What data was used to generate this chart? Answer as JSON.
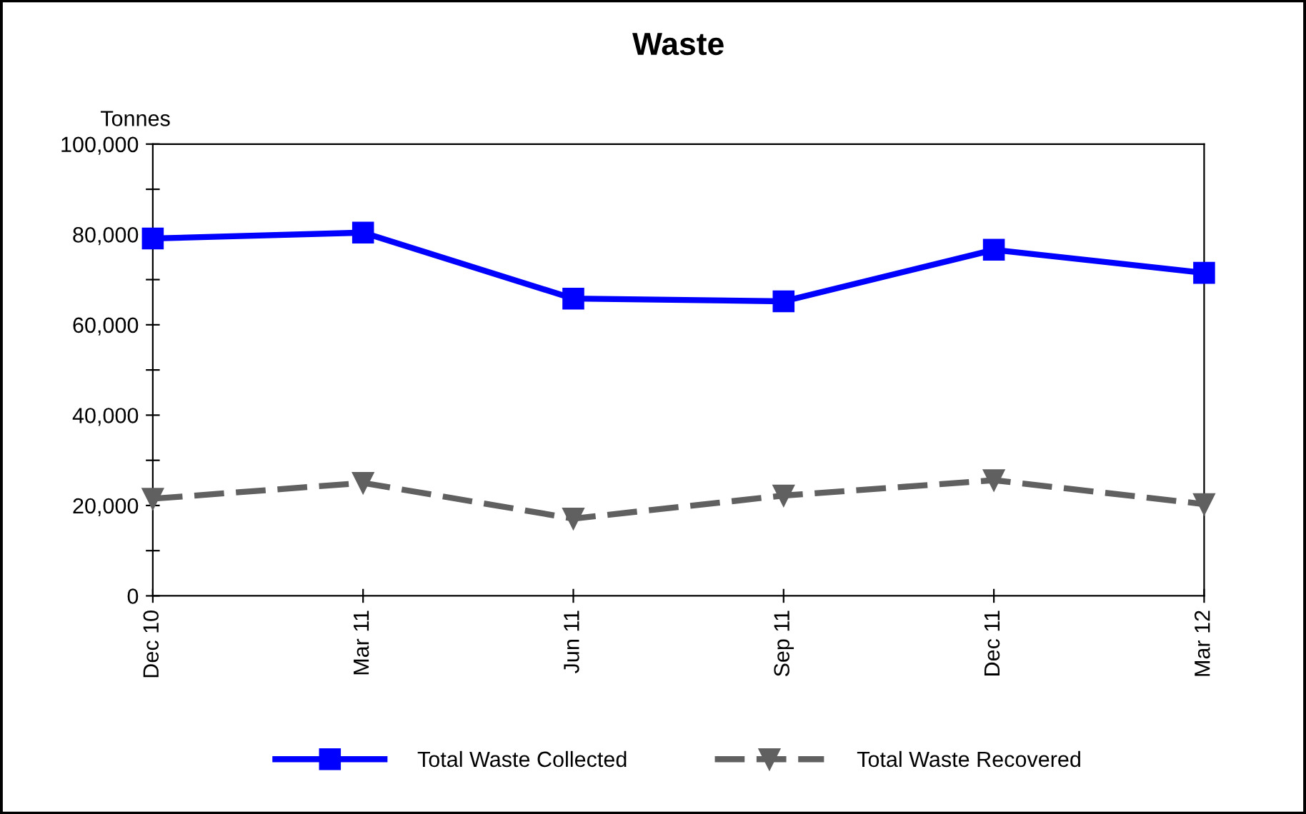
{
  "chart_data": {
    "type": "line",
    "title": "Waste",
    "ylabel": "Tonnes",
    "categories": [
      "Dec 10",
      "Mar 11",
      "Jun 11",
      "Sep 11",
      "Dec 11",
      "Mar 12"
    ],
    "series": [
      {
        "name": "Total Waste Collected",
        "color": "#0000ff",
        "marker": "square",
        "line_style": "solid",
        "values": [
          79100,
          80400,
          65800,
          65200,
          76600,
          71500
        ]
      },
      {
        "name": "Total Waste Recovered",
        "color": "#606060",
        "marker": "triangle",
        "line_style": "dashed",
        "values": [
          21500,
          25000,
          17100,
          22200,
          25600,
          20300
        ]
      }
    ],
    "ylim": [
      0,
      100000
    ],
    "yticks": [
      0,
      {
        "value": 10000,
        "label": null
      },
      {
        "value": 20000,
        "label": "20,000"
      },
      {
        "value": 30000,
        "label": null
      },
      {
        "value": 40000,
        "label": "40,000"
      },
      {
        "value": 50000,
        "label": null
      },
      {
        "value": 60000,
        "label": "60,000"
      },
      {
        "value": 70000,
        "label": null
      },
      {
        "value": 80000,
        "label": "80,000"
      },
      {
        "value": 90000,
        "label": null
      },
      {
        "value": 100000,
        "label": "100,000"
      }
    ],
    "grid": false,
    "legend": "bottom"
  }
}
